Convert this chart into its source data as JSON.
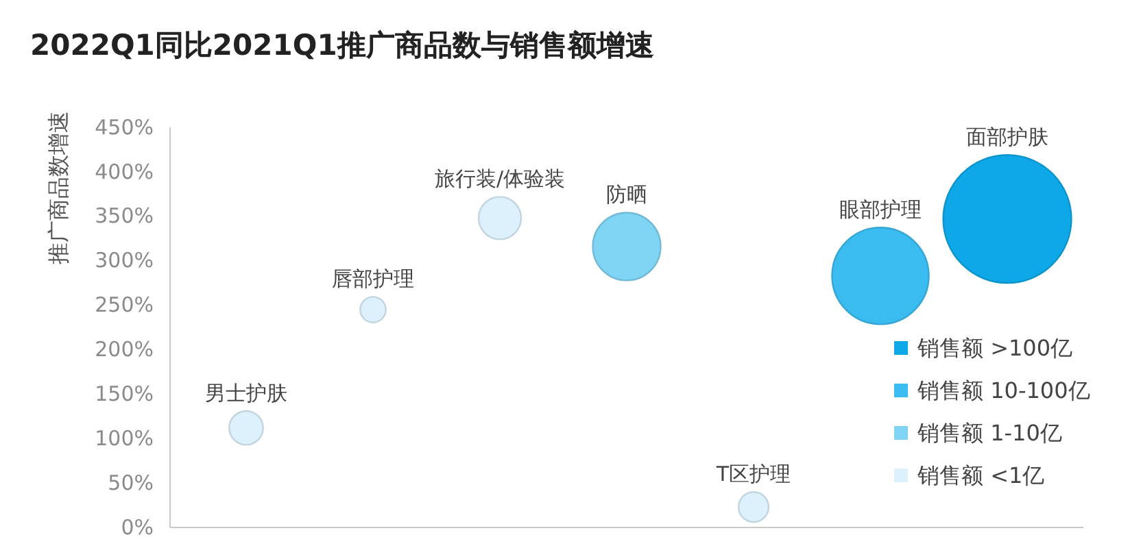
{
  "chart_data": {
    "type": "bubble",
    "title": "2022Q1同比2021Q1推广商品数与销售额增速",
    "ylabel": "推广商品数增速",
    "categories": [
      null,
      null,
      null,
      null,
      null,
      null,
      null
    ],
    "series": [
      {
        "name": "销售额 >100亿",
        "color": "#0ea8e8",
        "values": [
          null,
          null,
          null,
          null,
          null,
          null,
          347
        ],
        "sizes": [
          null,
          null,
          null,
          null,
          null,
          null,
          1
        ],
        "value_labels": [
          null,
          null,
          null,
          null,
          null,
          null,
          "面部护肤"
        ]
      },
      {
        "name": "销售额 10-100亿",
        "color": "#3bbcf0",
        "values": [
          null,
          null,
          null,
          null,
          null,
          283,
          null
        ],
        "sizes": [
          null,
          null,
          null,
          null,
          null,
          0.57,
          null
        ],
        "value_labels": [
          null,
          null,
          null,
          null,
          null,
          "眼部护理",
          null
        ]
      },
      {
        "name": "销售额 1-10亿",
        "color": "#7fd3f3",
        "values": [
          null,
          null,
          null,
          316,
          null,
          null,
          null
        ],
        "sizes": [
          null,
          null,
          null,
          0.28,
          null,
          null,
          null
        ],
        "value_labels": [
          null,
          null,
          null,
          "防晒",
          null,
          null,
          null
        ]
      },
      {
        "name": "销售额 <1亿",
        "color": "#dcf1fb",
        "values": [
          112,
          245,
          348,
          null,
          23,
          null,
          null
        ],
        "sizes": [
          0.07,
          0.04,
          0.11,
          null,
          0.055,
          null,
          null
        ],
        "value_labels": [
          "男士护肤",
          "唇部护理",
          "旅行装/体验装",
          null,
          "T区护理",
          null,
          null
        ]
      }
    ],
    "ylim": [
      0,
      450
    ],
    "yticks": [
      {
        "value": 0,
        "label": "0%"
      },
      {
        "value": 50,
        "label": "50%"
      },
      {
        "value": 100,
        "label": "100%"
      },
      {
        "value": 150,
        "label": "150%"
      },
      {
        "value": 200,
        "label": "200%"
      },
      {
        "value": 250,
        "label": "250%"
      },
      {
        "value": 300,
        "label": "300%"
      },
      {
        "value": 350,
        "label": "350%"
      },
      {
        "value": 400,
        "label": "400%"
      },
      {
        "value": 450,
        "label": "450%"
      }
    ],
    "tick_labels": "y",
    "legend": "bottom right"
  }
}
